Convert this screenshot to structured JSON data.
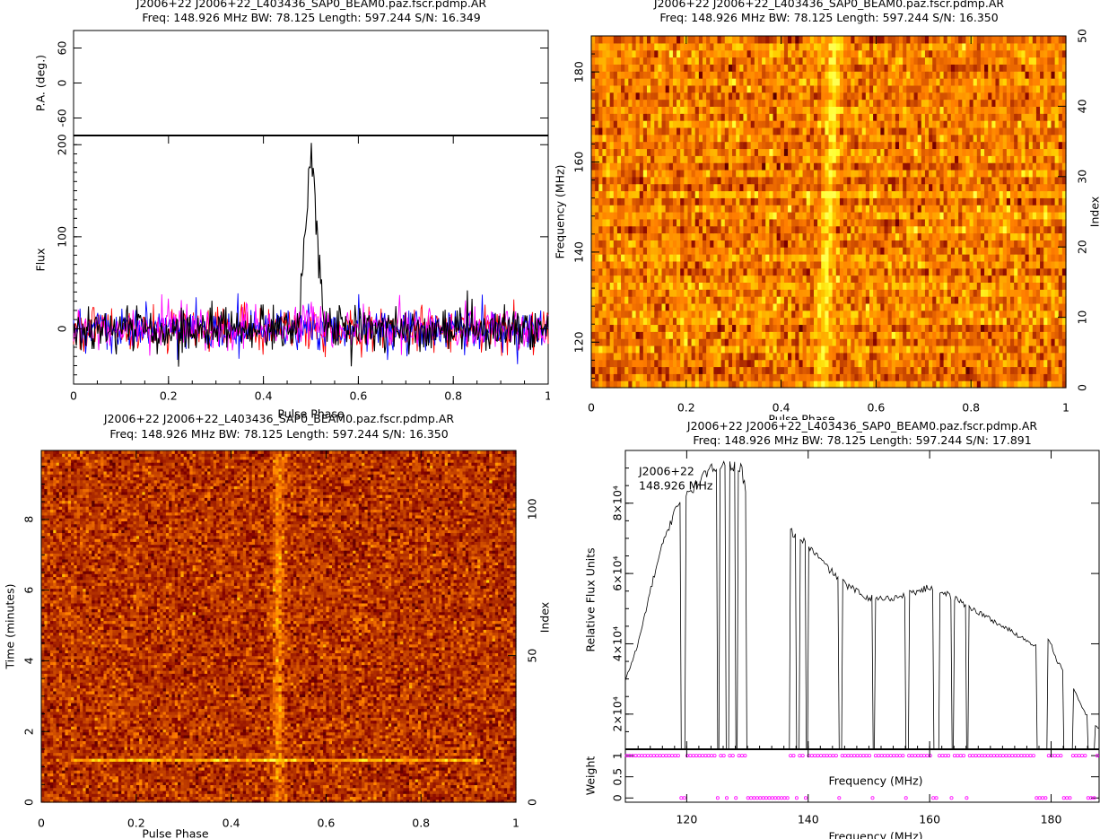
{
  "chart_data": [
    {
      "id": "profile",
      "type": "line",
      "title": "J2006+22  J2006+22_L403436_SAP0_BEAM0.paz.fscr.pdmp.AR",
      "subtitle": "Freq: 148.926 MHz BW: 78.125 Length: 597.244 S/N: 16.349",
      "pa_panel": {
        "ylabel": "P.A. (deg.)",
        "ylim": [
          -90,
          90
        ],
        "yticks": [
          "60",
          "0",
          "-60"
        ]
      },
      "xlabel": "Pulse Phase",
      "ylabel": "Flux",
      "xlim": [
        0,
        1
      ],
      "ylim": [
        -60,
        210
      ],
      "xticks": [
        "0",
        "0.2",
        "0.4",
        "0.6",
        "0.8",
        "1"
      ],
      "yticks": [
        "0",
        "100",
        "200"
      ],
      "peak": {
        "phase": 0.5,
        "flux": 186,
        "width": 0.012
      },
      "noise_rms": 12,
      "series": [
        {
          "color": "#ff0000"
        },
        {
          "color": "#0000ff"
        },
        {
          "color": "#ff00ff"
        },
        {
          "color": "#000000"
        }
      ]
    },
    {
      "id": "freq-phase",
      "type": "heatmap",
      "title": "J2006+22  J2006+22_L403436_SAP0_BEAM0.paz.fscr.pdmp.AR",
      "subtitle": "Freq: 148.926 MHz BW: 78.125 Length: 597.244 S/N: 16.350",
      "xlabel": "Pulse Phase",
      "ylabel": "Frequency (MHz)",
      "right_label": "Index",
      "xlim": [
        0,
        1
      ],
      "ylim": [
        109.9,
        188.0
      ],
      "right_lim": [
        0,
        50
      ],
      "xticks": [
        "0",
        "0.2",
        "0.4",
        "0.6",
        "0.8",
        "1"
      ],
      "yticks": [
        "120",
        "140",
        "160",
        "180"
      ],
      "right_ticks": [
        "0",
        "10",
        "20",
        "30",
        "40",
        "50"
      ],
      "channels": 50,
      "pulse_phase": 0.5
    },
    {
      "id": "time-phase",
      "type": "heatmap",
      "title": "J2006+22  J2006+22_L403436_SAP0_BEAM0.paz.fscr.pdmp.AR",
      "subtitle": "Freq: 148.926 MHz BW: 78.125 Length: 597.244 S/N: 16.350",
      "xlabel": "Pulse Phase",
      "ylabel": "Time (minutes)",
      "right_label": "Index",
      "xlim": [
        0,
        1
      ],
      "ylim": [
        0,
        9.95
      ],
      "right_lim": [
        0,
        120
      ],
      "xticks": [
        "0",
        "0.2",
        "0.4",
        "0.6",
        "0.8",
        "1"
      ],
      "yticks": [
        "0",
        "2",
        "4",
        "6",
        "8"
      ],
      "right_ticks": [
        "0",
        "50",
        "100"
      ],
      "subints": 120,
      "pulse_phase": 0.5,
      "bright_row_index": 14
    },
    {
      "id": "bandpass",
      "type": "line",
      "title": "J2006+22  J2006+22_L403436_SAP0_BEAM0.paz.fscr.pdmp.AR",
      "subtitle": "Freq: 148.926 MHz BW: 78.125 Length: 597.244 S/N: 17.891",
      "annotation": [
        "J2006+22",
        "148.926 MHz"
      ],
      "xlabel": "Frequency (MHz)",
      "ylabel": "Relative Flux Units",
      "xlim": [
        109.9,
        187.9
      ],
      "ylim": [
        10000,
        95000
      ],
      "xticks": [
        "120",
        "140",
        "160",
        "180"
      ],
      "yticks": [
        "2×10⁴",
        "4×10⁴",
        "6×10⁴",
        "8×10⁴"
      ],
      "ytick_values": [
        20000,
        40000,
        60000,
        80000
      ],
      "envelope": [
        [
          110,
          30000
        ],
        [
          112,
          40000
        ],
        [
          114,
          55000
        ],
        [
          116,
          68000
        ],
        [
          117.5,
          75000
        ],
        [
          118,
          79000
        ],
        [
          120,
          82000
        ],
        [
          121,
          84000
        ],
        [
          123,
          88000
        ],
        [
          125,
          91000
        ],
        [
          127,
          91000
        ],
        [
          129,
          90000
        ],
        [
          130,
          80000
        ],
        [
          137,
          72000
        ],
        [
          138.5,
          70000
        ],
        [
          140,
          68000
        ],
        [
          143,
          62000
        ],
        [
          146,
          57000
        ],
        [
          150,
          53000
        ],
        [
          154,
          53000
        ],
        [
          158,
          55000
        ],
        [
          160,
          56000
        ],
        [
          162,
          55000
        ],
        [
          166,
          51000
        ],
        [
          170,
          47000
        ],
        [
          174,
          43000
        ],
        [
          177,
          40000
        ],
        [
          178.5,
          38000
        ],
        [
          179.5,
          42000
        ],
        [
          181,
          35000
        ],
        [
          183,
          30000
        ],
        [
          185,
          22000
        ],
        [
          186.5,
          18000
        ],
        [
          187.9,
          16000
        ]
      ],
      "zapped": [
        [
          119,
          119.9
        ],
        [
          125,
          125.5
        ],
        [
          126.5,
          127
        ],
        [
          128,
          128.4
        ],
        [
          129.8,
          137
        ],
        [
          138,
          138.5
        ],
        [
          139.5,
          140
        ],
        [
          145,
          145.5
        ],
        [
          150.5,
          151
        ],
        [
          156,
          156.5
        ],
        [
          160.5,
          161.5
        ],
        [
          163.5,
          164
        ],
        [
          166,
          166.3
        ],
        [
          177.5,
          179.3
        ],
        [
          182,
          183.5
        ],
        [
          186,
          187.2
        ]
      ],
      "weight_panel": {
        "xlabel": "Frequency (MHz)",
        "ylabel": "Weight",
        "ylim": [
          -0.1,
          1.15
        ],
        "yticks": [
          "0",
          "0.5",
          "1"
        ],
        "marker_color": "#ff00ff"
      }
    }
  ]
}
